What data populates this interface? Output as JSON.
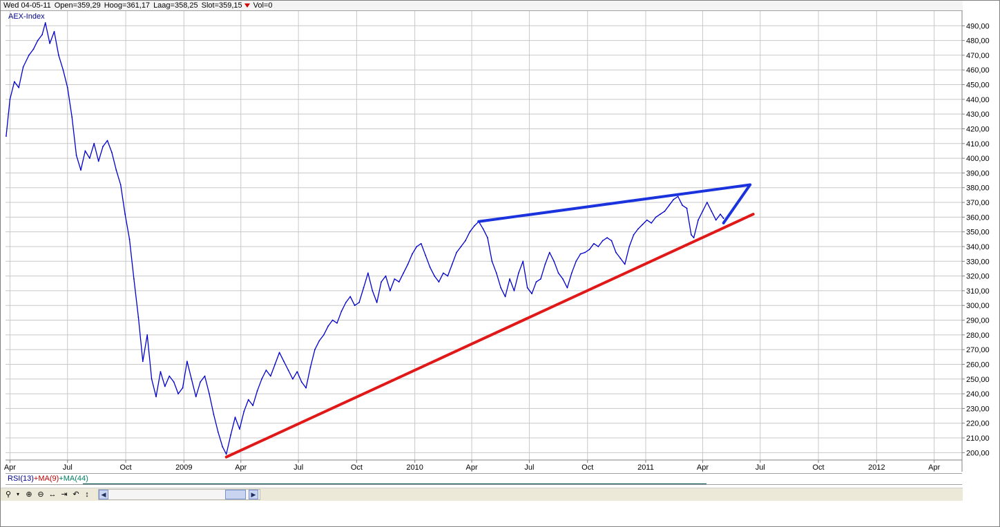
{
  "header": {
    "date": "Wed 04-05-11",
    "open": "Open=359,29",
    "high": "Hoog=361,17",
    "low": "Laag=358,25",
    "close": "Slot=359,15",
    "vol": "Vol=0"
  },
  "indicator": {
    "rsi": "RSI(13)",
    "ma9": "+MA(9)",
    "ma44": "+MA(44)"
  },
  "toolbar": {
    "icons": [
      "zoom-icon",
      "zoom-in-icon",
      "zoom-out-icon",
      "pan-horizontal-icon",
      "fit-right-icon",
      "rotate-icon",
      "pan-vertical-icon"
    ]
  },
  "colors": {
    "price": "#0000cc",
    "upper_trend": "#1a33dd",
    "lower_trend": "#e01818",
    "grid": "#c8c8c8"
  },
  "chart_data": {
    "type": "line",
    "title": "AEX-Index",
    "ylim": [
      195,
      500
    ],
    "yticks": [
      200,
      210,
      220,
      230,
      240,
      250,
      260,
      270,
      280,
      290,
      300,
      310,
      320,
      330,
      340,
      350,
      360,
      370,
      380,
      390,
      400,
      410,
      420,
      430,
      440,
      450,
      460,
      470,
      480,
      490
    ],
    "ytick_labels": [
      "200,00",
      "210,00",
      "220,00",
      "230,00",
      "240,00",
      "250,00",
      "260,00",
      "270,00",
      "280,00",
      "290,00",
      "300,00",
      "310,00",
      "320,00",
      "330,00",
      "340,00",
      "350,00",
      "360,00",
      "370,00",
      "380,00",
      "390,00",
      "400,00",
      "410,00",
      "420,00",
      "430,00",
      "440,00",
      "450,00",
      "460,00",
      "470,00",
      "480,00",
      "490,00"
    ],
    "xlim": [
      "2008-03-25",
      "2012-05-15"
    ],
    "xticks": [
      {
        "date": "2008-04-01",
        "label": "Apr"
      },
      {
        "date": "2008-07-01",
        "label": "Jul"
      },
      {
        "date": "2008-10-01",
        "label": "Oct"
      },
      {
        "date": "2009-01-01",
        "label": "2009"
      },
      {
        "date": "2009-04-01",
        "label": "Apr"
      },
      {
        "date": "2009-07-01",
        "label": "Jul"
      },
      {
        "date": "2009-10-01",
        "label": "Oct"
      },
      {
        "date": "2010-01-01",
        "label": "2010"
      },
      {
        "date": "2010-04-01",
        "label": "Apr"
      },
      {
        "date": "2010-07-01",
        "label": "Jul"
      },
      {
        "date": "2010-10-01",
        "label": "Oct"
      },
      {
        "date": "2011-01-01",
        "label": "2011"
      },
      {
        "date": "2011-04-01",
        "label": "Apr"
      },
      {
        "date": "2011-07-01",
        "label": "Jul"
      },
      {
        "date": "2011-10-01",
        "label": "Oct"
      },
      {
        "date": "2012-01-01",
        "label": "2012"
      },
      {
        "date": "2012-04-01",
        "label": "Apr"
      }
    ],
    "series": [
      {
        "points": [
          [
            "2008-03-26",
            415
          ],
          [
            "2008-04-01",
            440
          ],
          [
            "2008-04-08",
            452
          ],
          [
            "2008-04-15",
            448
          ],
          [
            "2008-04-22",
            462
          ],
          [
            "2008-05-01",
            470
          ],
          [
            "2008-05-08",
            474
          ],
          [
            "2008-05-15",
            480
          ],
          [
            "2008-05-22",
            484
          ],
          [
            "2008-05-27",
            492
          ],
          [
            "2008-06-03",
            478
          ],
          [
            "2008-06-10",
            486
          ],
          [
            "2008-06-17",
            470
          ],
          [
            "2008-06-24",
            460
          ],
          [
            "2008-07-01",
            448
          ],
          [
            "2008-07-08",
            428
          ],
          [
            "2008-07-15",
            402
          ],
          [
            "2008-07-22",
            392
          ],
          [
            "2008-07-29",
            405
          ],
          [
            "2008-08-05",
            400
          ],
          [
            "2008-08-12",
            410
          ],
          [
            "2008-08-19",
            398
          ],
          [
            "2008-08-26",
            408
          ],
          [
            "2008-09-02",
            412
          ],
          [
            "2008-09-09",
            404
          ],
          [
            "2008-09-16",
            392
          ],
          [
            "2008-09-23",
            382
          ],
          [
            "2008-09-30",
            362
          ],
          [
            "2008-10-07",
            345
          ],
          [
            "2008-10-14",
            318
          ],
          [
            "2008-10-21",
            292
          ],
          [
            "2008-10-28",
            262
          ],
          [
            "2008-11-04",
            280
          ],
          [
            "2008-11-11",
            250
          ],
          [
            "2008-11-18",
            238
          ],
          [
            "2008-11-25",
            255
          ],
          [
            "2008-12-02",
            245
          ],
          [
            "2008-12-09",
            252
          ],
          [
            "2008-12-16",
            248
          ],
          [
            "2008-12-23",
            240
          ],
          [
            "2008-12-30",
            244
          ],
          [
            "2009-01-06",
            262
          ],
          [
            "2009-01-13",
            250
          ],
          [
            "2009-01-20",
            238
          ],
          [
            "2009-01-27",
            248
          ],
          [
            "2009-02-03",
            252
          ],
          [
            "2009-02-10",
            240
          ],
          [
            "2009-02-17",
            226
          ],
          [
            "2009-02-24",
            214
          ],
          [
            "2009-03-03",
            204
          ],
          [
            "2009-03-09",
            199
          ],
          [
            "2009-03-16",
            212
          ],
          [
            "2009-03-23",
            224
          ],
          [
            "2009-03-30",
            216
          ],
          [
            "2009-04-06",
            228
          ],
          [
            "2009-04-13",
            236
          ],
          [
            "2009-04-20",
            232
          ],
          [
            "2009-04-27",
            242
          ],
          [
            "2009-05-04",
            250
          ],
          [
            "2009-05-11",
            256
          ],
          [
            "2009-05-18",
            252
          ],
          [
            "2009-05-25",
            260
          ],
          [
            "2009-06-01",
            268
          ],
          [
            "2009-06-08",
            262
          ],
          [
            "2009-06-15",
            256
          ],
          [
            "2009-06-22",
            250
          ],
          [
            "2009-06-29",
            255
          ],
          [
            "2009-07-06",
            248
          ],
          [
            "2009-07-13",
            244
          ],
          [
            "2009-07-20",
            258
          ],
          [
            "2009-07-27",
            270
          ],
          [
            "2009-08-03",
            276
          ],
          [
            "2009-08-10",
            280
          ],
          [
            "2009-08-17",
            286
          ],
          [
            "2009-08-24",
            290
          ],
          [
            "2009-08-31",
            288
          ],
          [
            "2009-09-07",
            296
          ],
          [
            "2009-09-14",
            302
          ],
          [
            "2009-09-21",
            306
          ],
          [
            "2009-09-28",
            300
          ],
          [
            "2009-10-05",
            302
          ],
          [
            "2009-10-12",
            312
          ],
          [
            "2009-10-19",
            322
          ],
          [
            "2009-10-26",
            310
          ],
          [
            "2009-11-02",
            302
          ],
          [
            "2009-11-09",
            316
          ],
          [
            "2009-11-16",
            320
          ],
          [
            "2009-11-23",
            310
          ],
          [
            "2009-11-30",
            318
          ],
          [
            "2009-12-07",
            316
          ],
          [
            "2009-12-14",
            322
          ],
          [
            "2009-12-21",
            328
          ],
          [
            "2009-12-28",
            335
          ],
          [
            "2010-01-04",
            340
          ],
          [
            "2010-01-11",
            342
          ],
          [
            "2010-01-18",
            334
          ],
          [
            "2010-01-25",
            326
          ],
          [
            "2010-02-01",
            320
          ],
          [
            "2010-02-08",
            316
          ],
          [
            "2010-02-15",
            322
          ],
          [
            "2010-02-22",
            320
          ],
          [
            "2010-03-01",
            328
          ],
          [
            "2010-03-08",
            336
          ],
          [
            "2010-03-15",
            340
          ],
          [
            "2010-03-22",
            344
          ],
          [
            "2010-03-29",
            350
          ],
          [
            "2010-04-05",
            354
          ],
          [
            "2010-04-12",
            357
          ],
          [
            "2010-04-19",
            352
          ],
          [
            "2010-04-26",
            346
          ],
          [
            "2010-05-03",
            330
          ],
          [
            "2010-05-10",
            322
          ],
          [
            "2010-05-17",
            312
          ],
          [
            "2010-05-24",
            306
          ],
          [
            "2010-05-31",
            318
          ],
          [
            "2010-06-07",
            310
          ],
          [
            "2010-06-14",
            322
          ],
          [
            "2010-06-21",
            330
          ],
          [
            "2010-06-28",
            312
          ],
          [
            "2010-07-05",
            308
          ],
          [
            "2010-07-12",
            316
          ],
          [
            "2010-07-19",
            318
          ],
          [
            "2010-07-26",
            328
          ],
          [
            "2010-08-02",
            336
          ],
          [
            "2010-08-09",
            330
          ],
          [
            "2010-08-16",
            322
          ],
          [
            "2010-08-23",
            318
          ],
          [
            "2010-08-30",
            312
          ],
          [
            "2010-09-06",
            322
          ],
          [
            "2010-09-13",
            330
          ],
          [
            "2010-09-20",
            335
          ],
          [
            "2010-09-27",
            336
          ],
          [
            "2010-10-04",
            338
          ],
          [
            "2010-10-11",
            342
          ],
          [
            "2010-10-18",
            340
          ],
          [
            "2010-10-25",
            344
          ],
          [
            "2010-11-01",
            346
          ],
          [
            "2010-11-08",
            344
          ],
          [
            "2010-11-15",
            336
          ],
          [
            "2010-11-22",
            332
          ],
          [
            "2010-11-29",
            328
          ],
          [
            "2010-12-06",
            340
          ],
          [
            "2010-12-13",
            348
          ],
          [
            "2010-12-20",
            352
          ],
          [
            "2010-12-27",
            355
          ],
          [
            "2011-01-03",
            358
          ],
          [
            "2011-01-10",
            356
          ],
          [
            "2011-01-17",
            360
          ],
          [
            "2011-01-24",
            362
          ],
          [
            "2011-01-31",
            364
          ],
          [
            "2011-02-07",
            368
          ],
          [
            "2011-02-14",
            372
          ],
          [
            "2011-02-21",
            374
          ],
          [
            "2011-02-28",
            368
          ],
          [
            "2011-03-07",
            366
          ],
          [
            "2011-03-14",
            348
          ],
          [
            "2011-03-18",
            346
          ],
          [
            "2011-03-25",
            358
          ],
          [
            "2011-04-01",
            364
          ],
          [
            "2011-04-08",
            370
          ],
          [
            "2011-04-15",
            364
          ],
          [
            "2011-04-22",
            358
          ],
          [
            "2011-04-29",
            362
          ],
          [
            "2011-05-04",
            359.15
          ]
        ]
      }
    ],
    "trendlines": [
      {
        "from": [
          "2009-03-09",
          197
        ],
        "to": [
          "2011-06-20",
          362
        ]
      },
      {
        "from": [
          "2010-04-12",
          357
        ],
        "to": [
          "2011-06-15",
          382
        ]
      },
      {
        "from": [
          "2011-05-04",
          356
        ],
        "to": [
          "2011-06-15",
          382
        ]
      }
    ]
  }
}
